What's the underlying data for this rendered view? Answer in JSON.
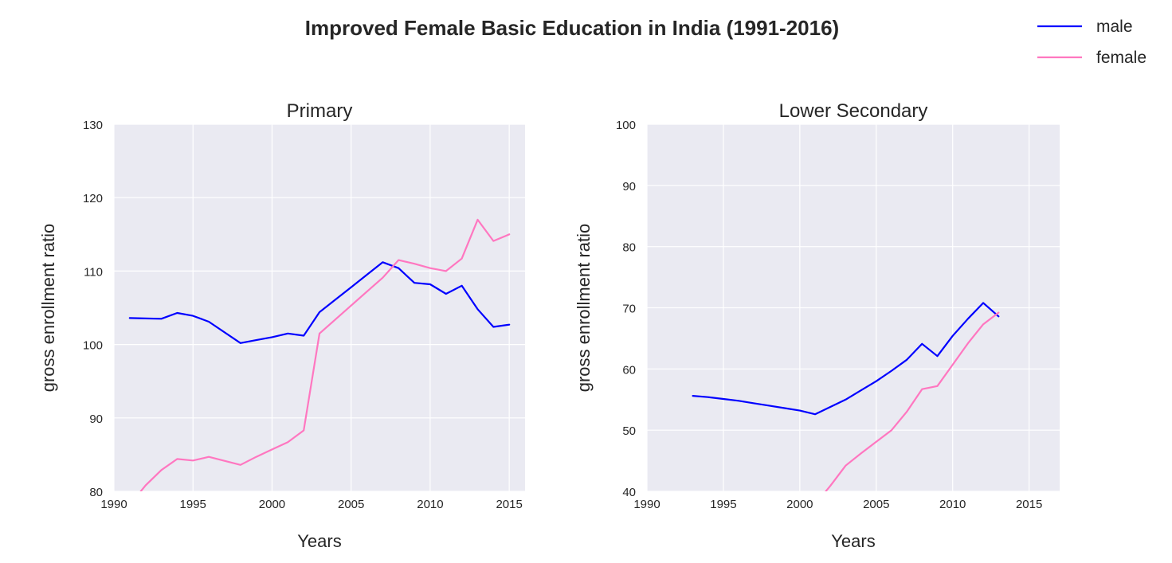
{
  "figure": {
    "title": "Improved Female Basic Education in India (1991-2016)"
  },
  "legend": {
    "placement": "top-right",
    "entries": [
      {
        "label": "male",
        "color": "#0000ff"
      },
      {
        "label": "female",
        "color": "#ff77c0"
      }
    ]
  },
  "chart_data": [
    {
      "type": "line",
      "title": "Primary",
      "xlabel": "Years",
      "ylabel": "gross enrollment ratio",
      "xlim": [
        1990,
        2016
      ],
      "ylim": [
        80,
        130
      ],
      "xticks": [
        1990,
        1995,
        2000,
        2005,
        2010,
        2015
      ],
      "yticks": [
        80,
        90,
        100,
        110,
        120,
        130
      ],
      "grid": true,
      "series": [
        {
          "name": "male",
          "color": "#0000ff",
          "points": [
            [
              1991,
              103.6
            ],
            [
              1992,
              103.55
            ],
            [
              1993,
              103.5
            ],
            [
              1994,
              104.3
            ],
            [
              1995,
              103.9
            ],
            [
              1996,
              103.1
            ],
            [
              1998,
              100.2
            ],
            [
              1999,
              100.6
            ],
            [
              2000,
              101.0
            ],
            [
              2001,
              101.5
            ],
            [
              2002,
              101.2
            ],
            [
              2003,
              104.4
            ],
            [
              2004,
              106.1
            ],
            [
              2005,
              107.8
            ],
            [
              2006,
              109.5
            ],
            [
              2007,
              111.2
            ],
            [
              2008,
              110.4
            ],
            [
              2009,
              108.4
            ],
            [
              2010,
              108.2
            ],
            [
              2011,
              106.9
            ],
            [
              2012,
              108.0
            ],
            [
              2013,
              104.8
            ],
            [
              2014,
              102.4
            ],
            [
              2015,
              102.7
            ]
          ]
        },
        {
          "name": "female",
          "color": "#ff77c0",
          "points": [
            [
              1991.7,
              80.0
            ],
            [
              1992,
              80.8
            ],
            [
              1993,
              82.9
            ],
            [
              1994,
              84.4
            ],
            [
              1995,
              84.2
            ],
            [
              1996,
              84.7
            ],
            [
              1998,
              83.6
            ],
            [
              1999,
              84.7
            ],
            [
              2000,
              85.7
            ],
            [
              2001,
              86.7
            ],
            [
              2002,
              88.3
            ],
            [
              2003,
              101.5
            ],
            [
              2004,
              103.4
            ],
            [
              2005,
              105.3
            ],
            [
              2006,
              107.2
            ],
            [
              2007,
              109.1
            ],
            [
              2008,
              111.5
            ],
            [
              2009,
              111.0
            ],
            [
              2010,
              110.4
            ],
            [
              2011,
              110.0
            ],
            [
              2012,
              111.7
            ],
            [
              2013,
              117.0
            ],
            [
              2014,
              114.1
            ],
            [
              2015,
              115.0
            ]
          ]
        }
      ]
    },
    {
      "type": "line",
      "title": "Lower Secondary",
      "xlabel": "Years",
      "ylabel": "gross enrollment ratio",
      "xlim": [
        1990,
        2017
      ],
      "ylim": [
        40,
        100
      ],
      "xticks": [
        1990,
        1995,
        2000,
        2005,
        2010,
        2015
      ],
      "yticks": [
        40,
        50,
        60,
        70,
        80,
        90,
        100
      ],
      "grid": true,
      "series": [
        {
          "name": "male",
          "color": "#0000ff",
          "points": [
            [
              1993,
              55.6
            ],
            [
              1994,
              55.4
            ],
            [
              1995,
              55.1
            ],
            [
              1996,
              54.8
            ],
            [
              1997,
              54.4
            ],
            [
              1998,
              54.0
            ],
            [
              1999,
              53.6
            ],
            [
              2000,
              53.2
            ],
            [
              2001,
              52.6
            ],
            [
              2002,
              53.8
            ],
            [
              2003,
              55.0
            ],
            [
              2004,
              56.5
            ],
            [
              2005,
              58.0
            ],
            [
              2006,
              59.7
            ],
            [
              2007,
              61.5
            ],
            [
              2008,
              64.1
            ],
            [
              2009,
              62.1
            ],
            [
              2010,
              65.4
            ],
            [
              2011,
              68.2
            ],
            [
              2012,
              70.8
            ],
            [
              2013,
              68.6
            ]
          ]
        },
        {
          "name": "female",
          "color": "#ff77c0",
          "points": [
            [
              2001.7,
              40.0
            ],
            [
              2002,
              40.9
            ],
            [
              2003,
              44.2
            ],
            [
              2004,
              46.2
            ],
            [
              2005,
              48.1
            ],
            [
              2006,
              50.0
            ],
            [
              2007,
              53.0
            ],
            [
              2008,
              56.7
            ],
            [
              2009,
              57.2
            ],
            [
              2010,
              60.7
            ],
            [
              2011,
              64.2
            ],
            [
              2012,
              67.3
            ],
            [
              2013,
              69.2
            ]
          ]
        }
      ]
    }
  ]
}
